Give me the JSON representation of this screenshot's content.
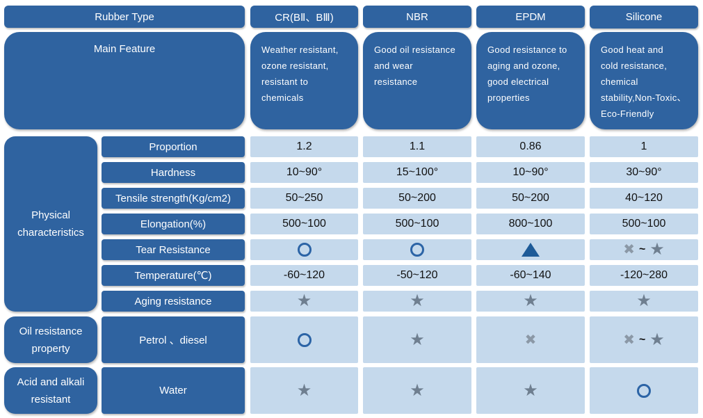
{
  "header": {
    "rubber_type": "Rubber Type",
    "columns": [
      "CR(BⅡ、BⅢ)",
      "NBR",
      "EPDM",
      "Silicone"
    ]
  },
  "main_feature": {
    "label": "Main Feature",
    "values": [
      [
        "Weather resistant,",
        "ozone resistant,",
        "resistant to",
        "chemicals"
      ],
      [
        "Good oil resistance",
        "and wear",
        "resistance"
      ],
      [
        "Good resistance to",
        "aging and ozone,",
        "good electrical",
        "properties"
      ],
      [
        "Good heat and",
        "cold resistance,",
        "chemical",
        "stability,Non-Toxic、",
        "Eco-Friendly"
      ]
    ]
  },
  "groups": {
    "physical": [
      "Physical",
      "characteristics"
    ],
    "oil": [
      "Oil resistance",
      "property"
    ],
    "acid": [
      "Acid and alkali",
      "resistant"
    ]
  },
  "rows": {
    "proportion": {
      "label": "Proportion",
      "values": [
        "1.2",
        "1.1",
        "0.86",
        "1"
      ]
    },
    "hardness": {
      "label": "Hardness",
      "values": [
        "10~90°",
        "15~100°",
        "10~90°",
        "30~90°"
      ]
    },
    "tensile": {
      "label": "Tensile strength(Kg/cm2)",
      "values": [
        "50~250",
        "50~200",
        "50~200",
        "40~120"
      ]
    },
    "elongation": {
      "label": "Elongation(%)",
      "values": [
        "500~100",
        "500~100",
        "800~100",
        "500~100"
      ]
    },
    "tear": {
      "label": "Tear Resistance",
      "symbols": [
        "circle-icon",
        "circle-icon",
        "triangle-icon",
        "cross-icon ~ star-icon"
      ]
    },
    "temperature": {
      "label": "Temperature(℃)",
      "values": [
        "-60~120",
        "-50~120",
        "-60~140",
        "-120~280"
      ]
    },
    "aging": {
      "label": "Aging resistance",
      "symbols": [
        "star-icon",
        "star-icon",
        "star-icon",
        "star-icon"
      ]
    },
    "petrol": {
      "label": "Petrol 、diesel",
      "symbols": [
        "circle-icon",
        "star-icon",
        "cross-icon",
        "cross-icon ~ star-icon"
      ]
    },
    "water": {
      "label": "Water",
      "symbols": [
        "star-icon",
        "star-icon",
        "star-icon",
        "circle-icon"
      ]
    }
  },
  "symbols": {
    "tilde": "~",
    "star": "★",
    "cross": "✖"
  },
  "colors": {
    "header_blue": "#2f63a0",
    "value_bg": "#c5d9ec",
    "circle": "#2c64a6",
    "triangle": "#1e5b98",
    "star": "#6f7f90"
  }
}
